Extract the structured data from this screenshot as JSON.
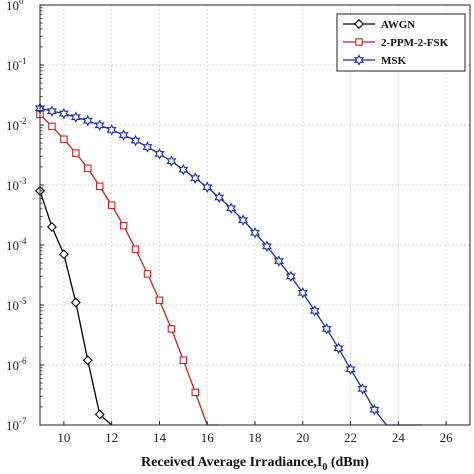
{
  "chart_data": {
    "type": "line",
    "title": "",
    "xlabel": "Received Average Irradiance,I",
    "xlabel_sub": "0",
    "xlabel_unit": " (dBm)",
    "ylabel": "",
    "xlim": [
      9,
      27
    ],
    "ylim_log10": [
      -7,
      0
    ],
    "yscale": "log",
    "grid": true,
    "legend_position": "top-right",
    "x_ticks": [
      10,
      12,
      14,
      16,
      18,
      20,
      22,
      24,
      26
    ],
    "y_ticks": [
      {
        "base": "10",
        "exp": "0"
      },
      {
        "base": "10",
        "exp": "-1"
      },
      {
        "base": "10",
        "exp": "-2"
      },
      {
        "base": "10",
        "exp": "-3"
      },
      {
        "base": "10",
        "exp": "-4"
      },
      {
        "base": "10",
        "exp": "-5"
      },
      {
        "base": "10",
        "exp": "-6"
      },
      {
        "base": "10",
        "exp": "-7"
      }
    ],
    "series": [
      {
        "name": "AWGN",
        "color": "#000000",
        "marker": "diamond",
        "x": [
          9.0,
          9.5,
          10.0,
          10.5,
          11.0,
          11.5,
          12.0
        ],
        "y": [
          0.0008,
          0.0002,
          7e-05,
          1.1e-05,
          1.2e-06,
          1.5e-07,
          1e-07
        ]
      },
      {
        "name": "2-PPM-2-FSK",
        "color": "#c0262c",
        "marker": "square",
        "x": [
          9.0,
          9.5,
          10.0,
          10.5,
          11.0,
          11.5,
          12.0,
          12.5,
          13.0,
          13.5,
          14.0,
          14.5,
          15.0,
          15.5,
          16.0,
          16.5
        ],
        "y": [
          0.015,
          0.0095,
          0.0058,
          0.0034,
          0.0019,
          0.00095,
          0.00046,
          0.00021,
          8.5e-05,
          3.3e-05,
          1.2e-05,
          4e-06,
          1.2e-06,
          3.5e-07,
          1e-07,
          1e-07
        ]
      },
      {
        "name": "MSK",
        "color": "#1f2fa8",
        "marker": "hexagram",
        "x": [
          9.0,
          9.5,
          10.0,
          10.5,
          11.0,
          11.5,
          12.0,
          12.5,
          13.0,
          13.5,
          14.0,
          14.5,
          15.0,
          15.5,
          16.0,
          16.5,
          17.0,
          17.5,
          18.0,
          18.5,
          19.0,
          19.5,
          20.0,
          20.5,
          21.0,
          21.5,
          22.0,
          22.5,
          23.0,
          23.5,
          24.0,
          24.5,
          25.0
        ],
        "y": [
          0.019,
          0.017,
          0.0155,
          0.0135,
          0.0118,
          0.0099,
          0.0083,
          0.0068,
          0.0055,
          0.0043,
          0.0033,
          0.0025,
          0.0018,
          0.0013,
          0.00092,
          0.00062,
          0.00041,
          0.00026,
          0.00016,
          9.5e-05,
          5.4e-05,
          3e-05,
          1.6e-05,
          8e-06,
          4e-06,
          1.9e-06,
          8.5e-07,
          4e-07,
          1.8e-07,
          1e-07,
          1e-07,
          1e-07,
          1e-07
        ]
      }
    ]
  }
}
